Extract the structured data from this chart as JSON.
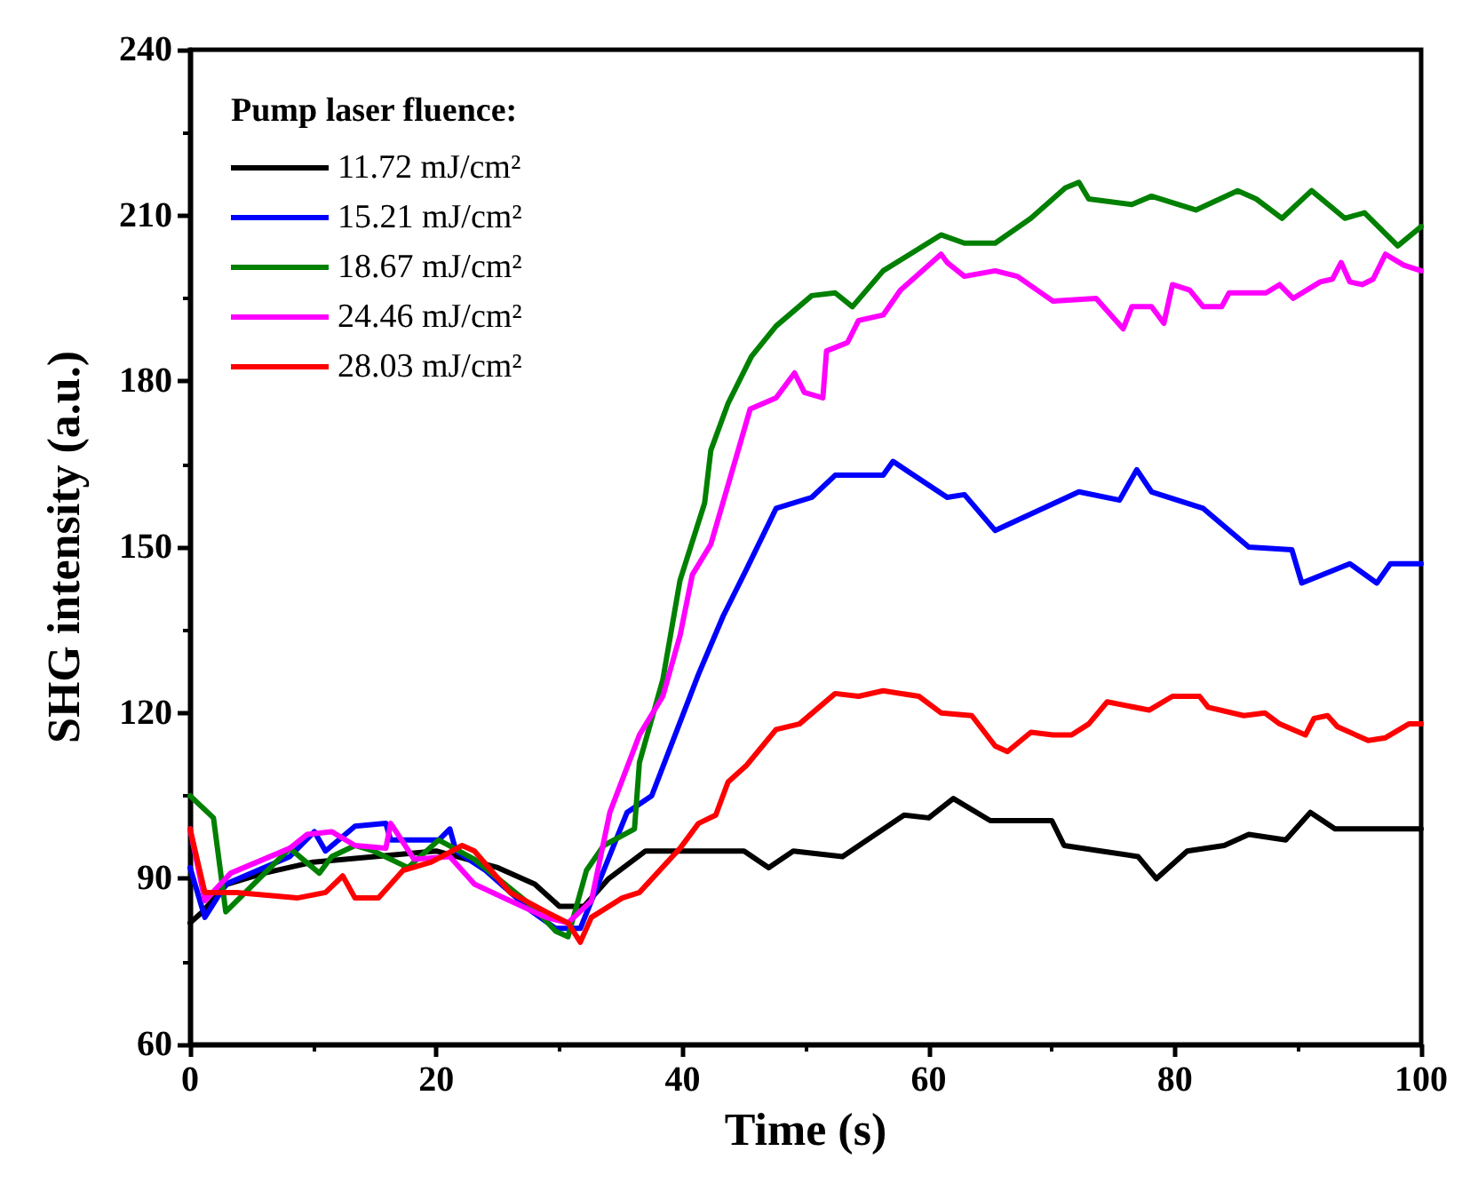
{
  "chart_data": {
    "type": "line",
    "xlabel": "Time (s)",
    "ylabel": "SHG intensity (a.u.)",
    "legend_title": "Pump laser fluence:",
    "legend": "top left",
    "grid": false,
    "marker": "none",
    "line_style": "solid",
    "xlim": [
      0,
      100
    ],
    "xticks": [
      0,
      20,
      40,
      60,
      80,
      100
    ],
    "ylim": [
      60,
      240
    ],
    "yticks": [
      60,
      90,
      120,
      150,
      180,
      210,
      240
    ],
    "series": [
      {
        "name": "11.72 mJ/cm²",
        "color": "#000000",
        "x": [
          0,
          1,
          3,
          6,
          10,
          15,
          20,
          25,
          28,
          30,
          32,
          34,
          37,
          40,
          45,
          47,
          49,
          53,
          58,
          60,
          62,
          65,
          70,
          71,
          74,
          77,
          78.5,
          81,
          84,
          86,
          89,
          91,
          93,
          96,
          100
        ],
        "values": [
          82,
          84,
          89,
          91,
          93,
          94,
          95,
          92,
          89,
          85,
          85,
          90,
          95,
          95,
          95,
          92,
          95,
          94,
          101.5,
          101,
          104.5,
          100.5,
          100.5,
          96,
          95,
          94,
          90,
          95,
          96,
          98,
          97,
          102,
          99,
          99,
          99
        ]
      },
      {
        "name": "15.21 mJ/cm²",
        "color": "#0000ff",
        "x": [
          0,
          1.2,
          2.9,
          8.1,
          10.1,
          11,
          13.4,
          15.9,
          16.3,
          20.2,
          21.1,
          21.6,
          24,
          27.8,
          29.7,
          31.7,
          33.6,
          35.5,
          37.5,
          41.3,
          43.3,
          45.2,
          47.6,
          50.5,
          52.4,
          56.3,
          57.1,
          61.5,
          62.9,
          65.4,
          72.2,
          75.5,
          76.9,
          78.1,
          82.3,
          86,
          89.5,
          90.3,
          94.2,
          96.4,
          97.5,
          100
        ],
        "values": [
          92,
          83,
          89,
          94,
          98.5,
          95,
          99.5,
          100,
          97,
          97,
          99,
          95,
          91.5,
          84,
          81,
          81,
          91.5,
          102,
          105,
          127,
          137.5,
          146,
          157,
          159,
          163,
          163,
          165.5,
          159,
          159.5,
          153,
          160,
          158.5,
          164,
          160,
          157,
          150,
          149.5,
          143.5,
          147,
          143.5,
          147,
          147
        ]
      },
      {
        "name": "18.67 mJ/cm²",
        "color": "#008000",
        "x": [
          0,
          1.9,
          2.9,
          8.1,
          10.5,
          11.5,
          13.4,
          14.9,
          17.7,
          20.2,
          23.1,
          27.8,
          29.7,
          30.7,
          32.2,
          33.6,
          36.1,
          36.5,
          38.4,
          39.8,
          41.8,
          42.3,
          43.7,
          45.6,
          47.6,
          50.5,
          52.4,
          53.8,
          56.3,
          61,
          62.9,
          65.4,
          68.3,
          71.1,
          72.2,
          73,
          76.5,
          78.1,
          81.7,
          85.1,
          86.6,
          88.7,
          91.1,
          93.8,
          95.4,
          98.1,
          100
        ],
        "values": [
          105,
          101,
          84,
          95.5,
          91,
          94,
          96,
          95,
          92,
          97,
          93.5,
          85,
          80.5,
          79.5,
          91.5,
          96,
          99,
          111,
          126,
          144,
          158,
          167.5,
          176,
          184.5,
          190,
          195.5,
          196,
          193.5,
          200,
          206.5,
          205,
          205,
          209.5,
          215,
          216,
          213,
          212,
          213.5,
          211,
          214.5,
          213,
          209.5,
          214.5,
          209.5,
          210.5,
          204.5,
          208
        ]
      },
      {
        "name": "24.46 mJ/cm²",
        "color": "#ff00ff",
        "x": [
          0,
          1.2,
          3.3,
          8.1,
          9.5,
          11.5,
          13.4,
          15.9,
          16.3,
          18.2,
          21.1,
          23.1,
          26,
          28.9,
          30.7,
          32.6,
          34.1,
          36.5,
          38.4,
          39.8,
          40.8,
          42.3,
          45.5,
          47.6,
          49.1,
          49.9,
          51.4,
          51.7,
          53.4,
          54.3,
          56.3,
          57.7,
          61,
          61.5,
          62.9,
          65.4,
          67.2,
          70.1,
          73.6,
          75.8,
          76.5,
          78.1,
          79.1,
          79.8,
          81.2,
          82.3,
          83.8,
          84.4,
          87.4,
          88.5,
          89.6,
          91.8,
          92.8,
          93.5,
          94.2,
          95.2,
          96.1,
          97.1,
          98.6,
          100
        ],
        "values": [
          99,
          86,
          91,
          95.5,
          98,
          98.5,
          96,
          95.5,
          100,
          93.5,
          94,
          89,
          86,
          83,
          82,
          86,
          102,
          116,
          123,
          134,
          145,
          150.5,
          175,
          177,
          181.5,
          178,
          177,
          185.5,
          187,
          191,
          192,
          196.5,
          203,
          201.5,
          199,
          200,
          199,
          194.5,
          195,
          189.5,
          193.5,
          193.5,
          190.5,
          197.5,
          196.5,
          193.5,
          193.5,
          196,
          196,
          197.5,
          195,
          198,
          198.5,
          201.5,
          198,
          197.5,
          198.5,
          203,
          201,
          200
        ]
      },
      {
        "name": "28.03 mJ/cm²",
        "color": "#ff0000",
        "x": [
          0,
          1.2,
          3.8,
          8.7,
          11,
          12.4,
          13.4,
          15.3,
          17.3,
          19.6,
          22.1,
          23.1,
          26,
          28.9,
          30.7,
          31.7,
          32.6,
          35.1,
          36.5,
          39.8,
          41.3,
          42.7,
          43.7,
          45.2,
          47.6,
          49.5,
          52.4,
          54.3,
          56.3,
          59.2,
          61,
          63.5,
          65.4,
          66.4,
          68.3,
          70.1,
          71.6,
          73,
          74.5,
          77.9,
          79.8,
          82,
          82.7,
          85.6,
          87.3,
          88.5,
          90.6,
          91.3,
          92.4,
          93.2,
          95.7,
          97.1,
          99,
          100
        ],
        "values": [
          99,
          87.5,
          87.5,
          86.5,
          87.5,
          90.5,
          86.5,
          86.5,
          91.5,
          93,
          96,
          95,
          87.5,
          84,
          82,
          78.5,
          83,
          86.5,
          87.5,
          95.5,
          100,
          101.5,
          107.5,
          110.5,
          117,
          118,
          123.5,
          123,
          124,
          123,
          120,
          119.5,
          114,
          113,
          116.5,
          116,
          116,
          118,
          122,
          120.5,
          123,
          123,
          121,
          119.5,
          120,
          118,
          116,
          119,
          119.5,
          117.5,
          115,
          115.5,
          118,
          118
        ]
      }
    ]
  }
}
